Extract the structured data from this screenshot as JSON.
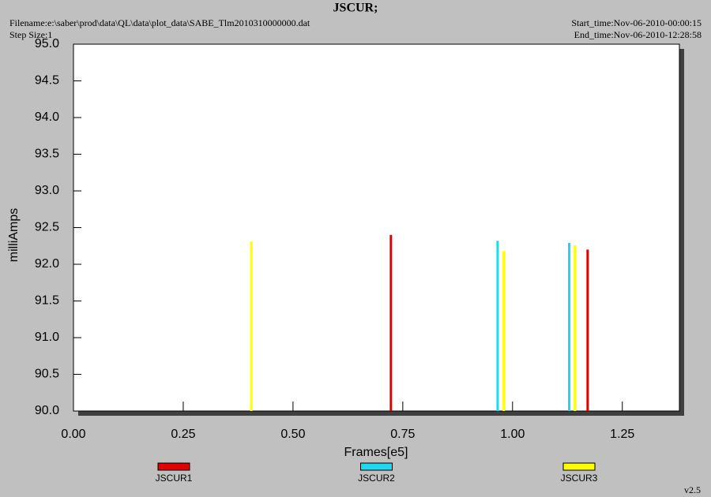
{
  "chart_data": {
    "type": "spike",
    "title": "JSCUR;",
    "filename": "Filename:e:\\saber\\prod\\data\\QL\\data\\plot_data\\SABE_Tlm2010310000000.dat",
    "step_size": "Step Size:1",
    "start_time": "Start_time:Nov-06-2010-00:00:15",
    "end_time": "End_time:Nov-06-2010-12:28:58",
    "version": "v2.5",
    "x_label": "Frames[e5]",
    "y_label": "milliAmps",
    "xlim": [
      0,
      1.38
    ],
    "ylim": [
      90,
      95
    ],
    "xticks": [
      {
        "value": 0,
        "label": "0.00"
      },
      {
        "value": 0.25,
        "label": "0.25"
      },
      {
        "value": 0.5,
        "label": "0.50"
      },
      {
        "value": 0.75,
        "label": "0.75"
      },
      {
        "value": 1,
        "label": "1.00"
      },
      {
        "value": 1.25,
        "label": "1.25"
      }
    ],
    "yticks": [
      {
        "value": 90,
        "label": "90.0"
      },
      {
        "value": 90.5,
        "label": "90.5"
      },
      {
        "value": 91,
        "label": "91.0"
      },
      {
        "value": 91.5,
        "label": "91.5"
      },
      {
        "value": 92,
        "label": "92.0"
      },
      {
        "value": 92.5,
        "label": "92.5"
      },
      {
        "value": 93,
        "label": "93.0"
      },
      {
        "value": 93.5,
        "label": "93.5"
      },
      {
        "value": 94,
        "label": "94.0"
      },
      {
        "value": 94.5,
        "label": "94.5"
      },
      {
        "value": 95,
        "label": "95.0"
      }
    ],
    "series": [
      {
        "name": "JSCUR1",
        "color": "#e00000",
        "x": [
          0.723,
          1.171
        ],
        "values": [
          92.4,
          92.2
        ]
      },
      {
        "name": "JSCUR2",
        "color": "#20d8f0",
        "x": [
          0.966,
          1.129
        ],
        "values": [
          92.32,
          92.29
        ]
      },
      {
        "name": "JSCUR3",
        "color": "#ffff00",
        "x": [
          0.405,
          0.98,
          1.142
        ],
        "values": [
          92.31,
          92.18,
          92.26
        ]
      }
    ]
  }
}
